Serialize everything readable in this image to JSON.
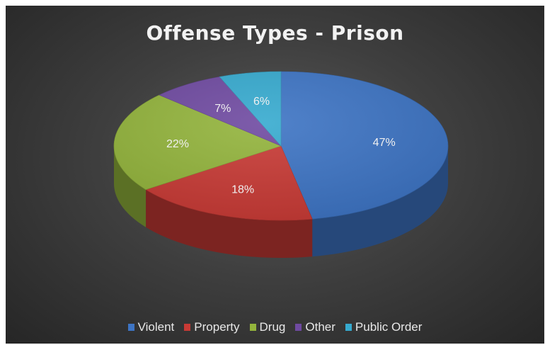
{
  "chart_data": {
    "type": "pie",
    "title": "Offense Types - Prison",
    "categories": [
      "Violent",
      "Property",
      "Drug",
      "Other",
      "Public Order"
    ],
    "values": [
      47,
      18,
      22,
      7,
      6
    ],
    "labels": [
      "47%",
      "18%",
      "22%",
      "7%",
      "6%"
    ],
    "colors": [
      "#3d74c4",
      "#c83a35",
      "#93b43c",
      "#6f4aa1",
      "#36aacf"
    ],
    "legend": "bottom",
    "style": "3d"
  }
}
